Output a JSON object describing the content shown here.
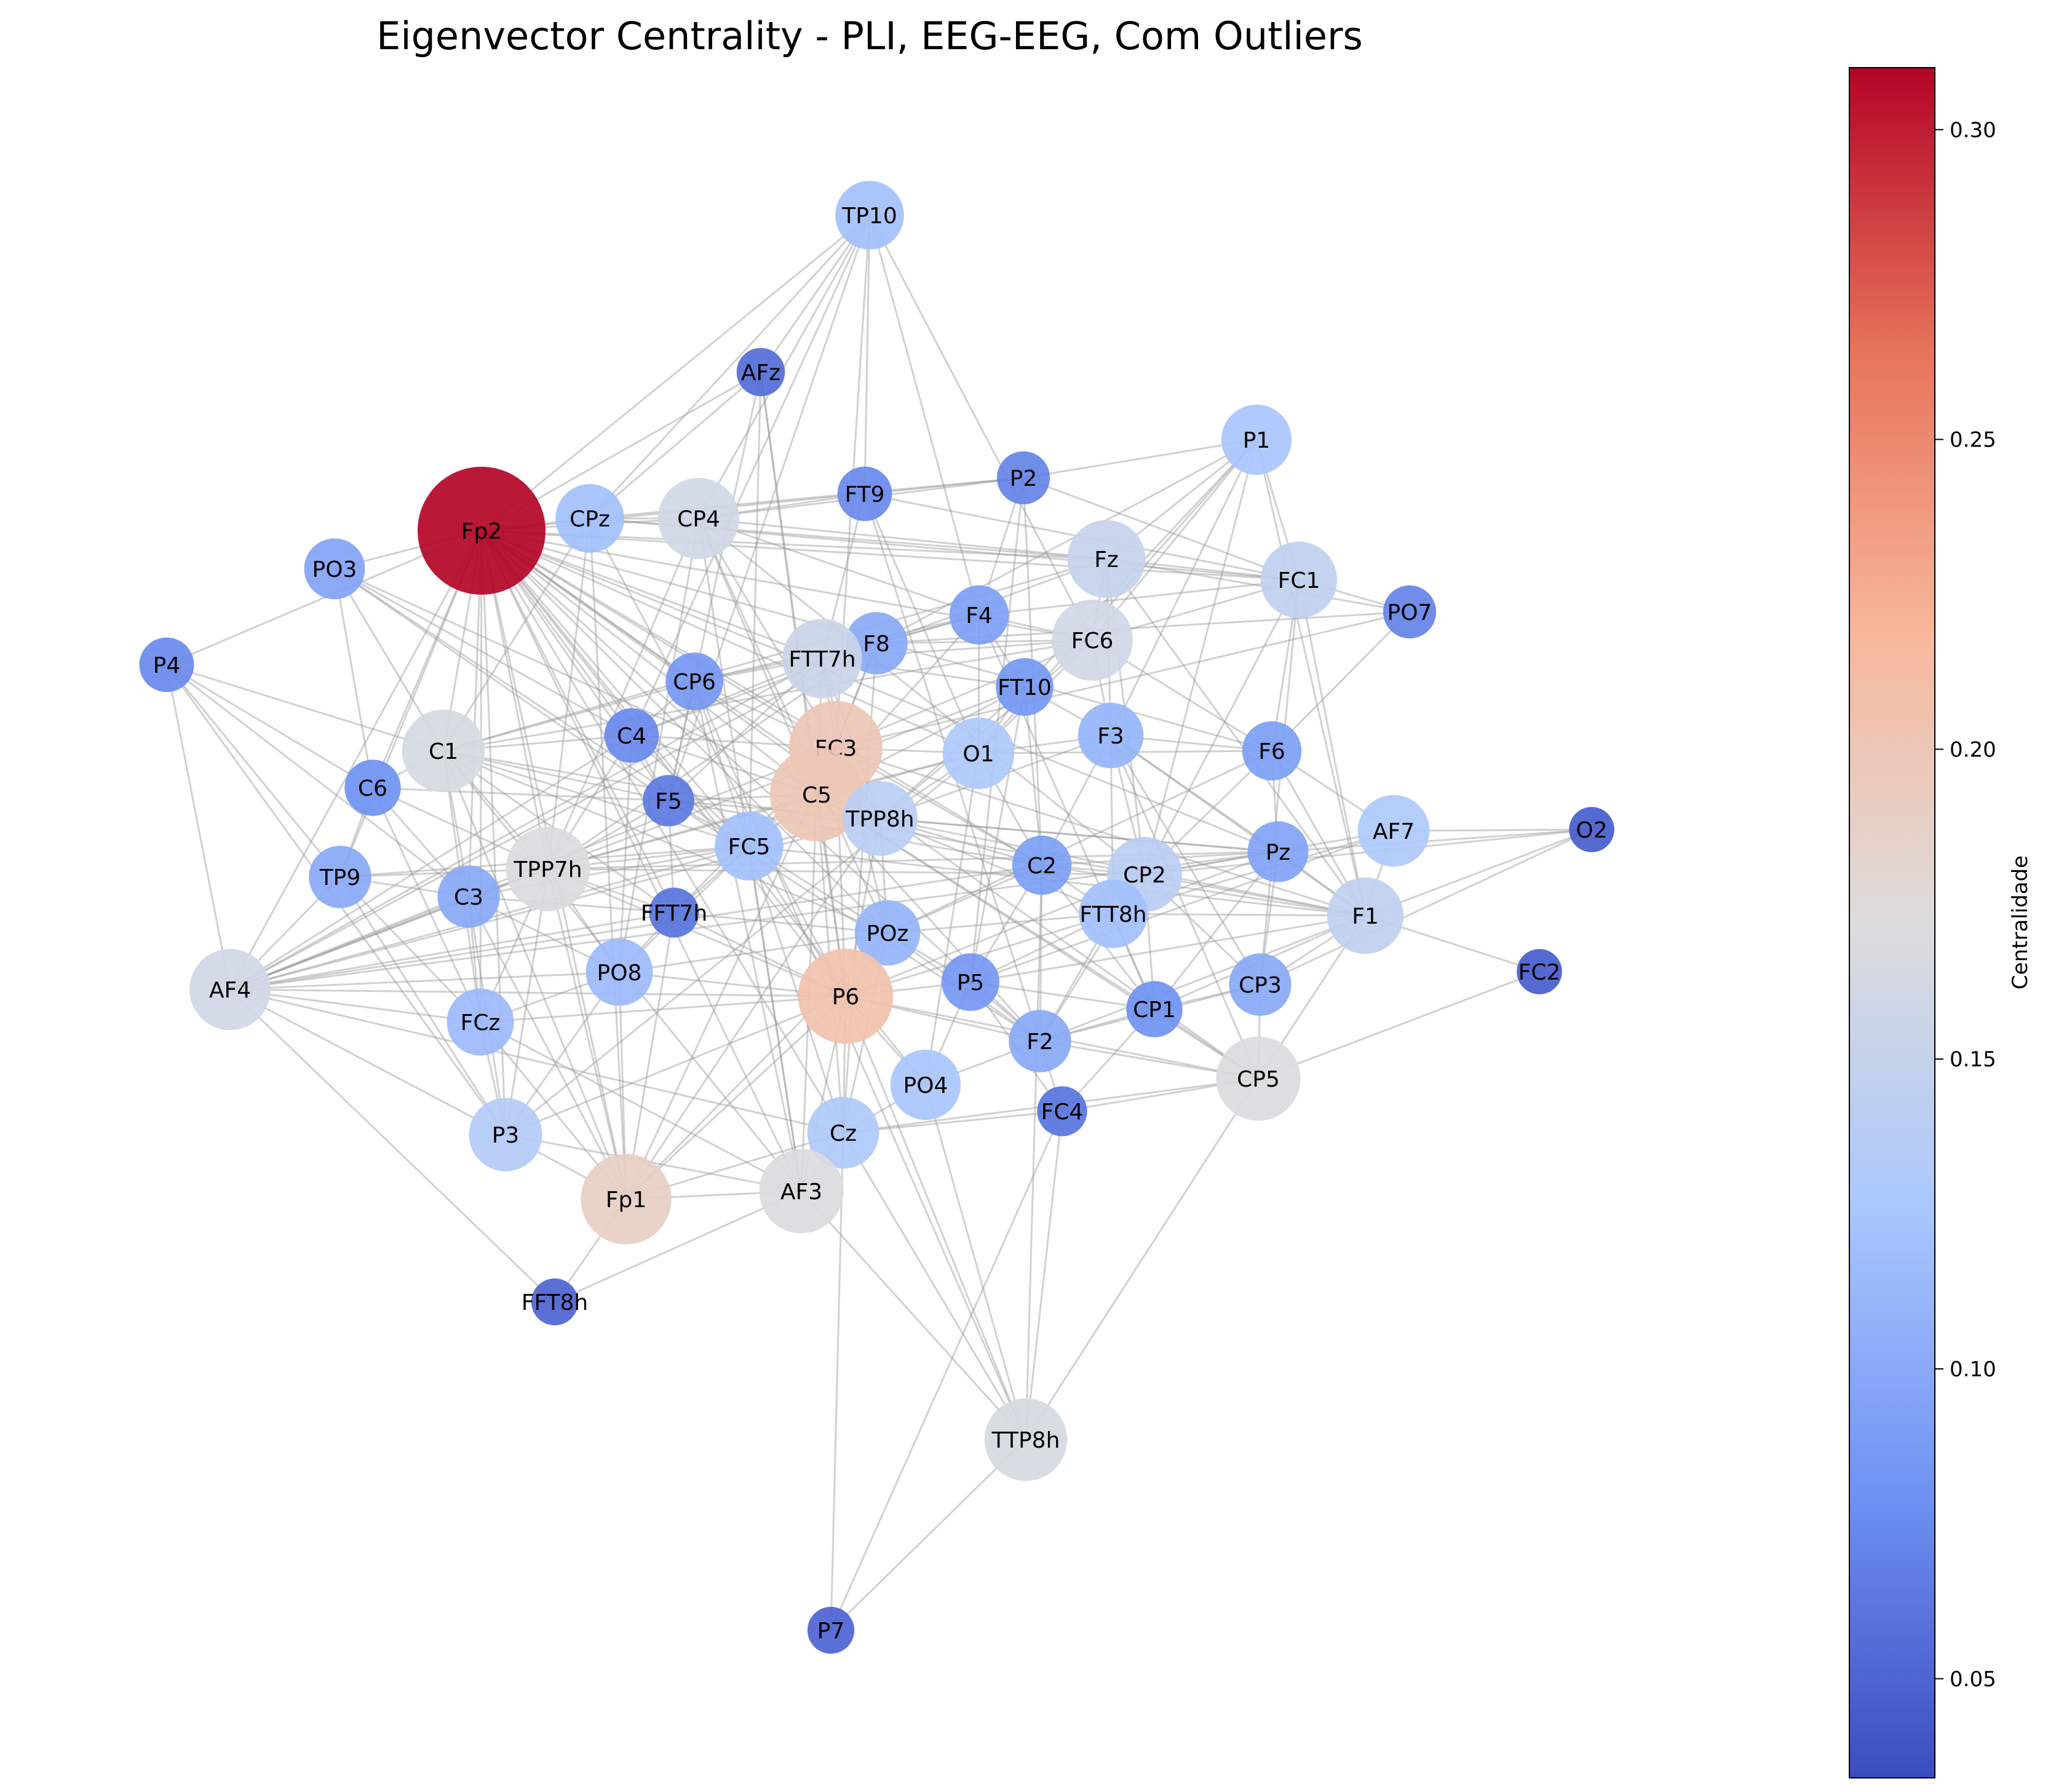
{
  "title": "Eigenvector Centrality - PLI, EEG-EEG, Com Outliers",
  "colorbar": {
    "label": "Centralidade",
    "min": 0.034,
    "max": 0.31,
    "ticks": [
      "0.05",
      "0.10",
      "0.15",
      "0.20",
      "0.25",
      "0.30"
    ],
    "tick_values": [
      0.05,
      0.1,
      0.15,
      0.2,
      0.25,
      0.3
    ],
    "colormap": "coolwarm",
    "colormap_stops": [
      "#3b4cc0",
      "#6f92f3",
      "#aac7fd",
      "#dddcdc",
      "#f7b89c",
      "#e7745b",
      "#b40426"
    ]
  },
  "nodes": [
    {
      "id": "TP10",
      "value": 0.12
    },
    {
      "id": "AFz",
      "value": 0.055
    },
    {
      "id": "P1",
      "value": 0.125
    },
    {
      "id": "P2",
      "value": 0.07
    },
    {
      "id": "FT9",
      "value": 0.075
    },
    {
      "id": "CPz",
      "value": 0.12
    },
    {
      "id": "CP4",
      "value": 0.16
    },
    {
      "id": "Fp2",
      "value": 0.31
    },
    {
      "id": "PO3",
      "value": 0.095
    },
    {
      "id": "Fz",
      "value": 0.15
    },
    {
      "id": "FC1",
      "value": 0.145
    },
    {
      "id": "PO7",
      "value": 0.07
    },
    {
      "id": "P4",
      "value": 0.075
    },
    {
      "id": "F4",
      "value": 0.09
    },
    {
      "id": "FC6",
      "value": 0.16
    },
    {
      "id": "F8",
      "value": 0.1
    },
    {
      "id": "FTT7h",
      "value": 0.155
    },
    {
      "id": "CP6",
      "value": 0.085
    },
    {
      "id": "FT10",
      "value": 0.085
    },
    {
      "id": "C1",
      "value": 0.165
    },
    {
      "id": "C4",
      "value": 0.075
    },
    {
      "id": "FC3",
      "value": 0.2
    },
    {
      "id": "O1",
      "value": 0.13
    },
    {
      "id": "F3",
      "value": 0.11
    },
    {
      "id": "F6",
      "value": 0.09
    },
    {
      "id": "C6",
      "value": 0.08
    },
    {
      "id": "F5",
      "value": 0.065
    },
    {
      "id": "C5",
      "value": 0.2
    },
    {
      "id": "TPP8h",
      "value": 0.14
    },
    {
      "id": "AF7",
      "value": 0.13
    },
    {
      "id": "O2",
      "value": 0.045
    },
    {
      "id": "TP9",
      "value": 0.1
    },
    {
      "id": "FC5",
      "value": 0.12
    },
    {
      "id": "TPP7h",
      "value": 0.17
    },
    {
      "id": "C2",
      "value": 0.09
    },
    {
      "id": "CP2",
      "value": 0.14
    },
    {
      "id": "Pz",
      "value": 0.095
    },
    {
      "id": "C3",
      "value": 0.1
    },
    {
      "id": "FFT7h",
      "value": 0.06
    },
    {
      "id": "FTT8h",
      "value": 0.12
    },
    {
      "id": "F1",
      "value": 0.145
    },
    {
      "id": "AF4",
      "value": 0.16
    },
    {
      "id": "POz",
      "value": 0.11
    },
    {
      "id": "PO8",
      "value": 0.115
    },
    {
      "id": "FC2",
      "value": 0.045
    },
    {
      "id": "P5",
      "value": 0.085
    },
    {
      "id": "CP1",
      "value": 0.08
    },
    {
      "id": "CP3",
      "value": 0.1
    },
    {
      "id": "P6",
      "value": 0.205
    },
    {
      "id": "FCz",
      "value": 0.115
    },
    {
      "id": "F2",
      "value": 0.1
    },
    {
      "id": "PO4",
      "value": 0.125
    },
    {
      "id": "CP5",
      "value": 0.17
    },
    {
      "id": "FC4",
      "value": 0.06
    },
    {
      "id": "P3",
      "value": 0.135
    },
    {
      "id": "Cz",
      "value": 0.13
    },
    {
      "id": "Fp1",
      "value": 0.19
    },
    {
      "id": "AF3",
      "value": 0.17
    },
    {
      "id": "FFT8h",
      "value": 0.05
    },
    {
      "id": "TTP8h",
      "value": 0.165
    },
    {
      "id": "P7",
      "value": 0.05
    }
  ],
  "edges": [
    [
      "TP10",
      "AFz"
    ],
    [
      "TP10",
      "CP4"
    ],
    [
      "TP10",
      "Fp2"
    ],
    [
      "TP10",
      "FT9"
    ],
    [
      "TP10",
      "F4"
    ],
    [
      "TP10",
      "FC6"
    ],
    [
      "TP10",
      "F5"
    ],
    [
      "TP10",
      "C4"
    ],
    [
      "TP10",
      "CPz"
    ],
    [
      "TP10",
      "FC3"
    ],
    [
      "AFz",
      "Fp2"
    ],
    [
      "AFz",
      "CPz"
    ],
    [
      "AFz",
      "F5"
    ],
    [
      "AFz",
      "C5"
    ],
    [
      "AFz",
      "FC5"
    ],
    [
      "AFz",
      "P6"
    ],
    [
      "P1",
      "P2"
    ],
    [
      "P1",
      "Fz"
    ],
    [
      "P1",
      "FC6"
    ],
    [
      "P1",
      "F8"
    ],
    [
      "P1",
      "FC1"
    ],
    [
      "P1",
      "F3"
    ],
    [
      "P1",
      "CP2"
    ],
    [
      "P1",
      "F1"
    ],
    [
      "P1",
      "O1"
    ],
    [
      "P1",
      "FT10"
    ],
    [
      "P2",
      "FT9"
    ],
    [
      "P2",
      "CPz"
    ],
    [
      "P2",
      "CP4"
    ],
    [
      "P2",
      "F4"
    ],
    [
      "P2",
      "FC1"
    ],
    [
      "P2",
      "C2"
    ],
    [
      "P2",
      "P5"
    ],
    [
      "FT9",
      "CP4"
    ],
    [
      "FT9",
      "FC1"
    ],
    [
      "FT9",
      "FTT7h"
    ],
    [
      "FT9",
      "F2"
    ],
    [
      "FT9",
      "Fp2"
    ],
    [
      "FT9",
      "O1"
    ],
    [
      "CPz",
      "Fp2"
    ],
    [
      "CPz",
      "CP4"
    ],
    [
      "CPz",
      "Fz"
    ],
    [
      "CPz",
      "C1"
    ],
    [
      "CPz",
      "TPP7h"
    ],
    [
      "CPz",
      "P6"
    ],
    [
      "CPz",
      "Fp1"
    ],
    [
      "CPz",
      "FC1"
    ],
    [
      "CP4",
      "Fp2"
    ],
    [
      "CP4",
      "F4"
    ],
    [
      "CP4",
      "FC3"
    ],
    [
      "CP4",
      "C5"
    ],
    [
      "CP4",
      "PO8"
    ],
    [
      "CP4",
      "POz"
    ],
    [
      "CP4",
      "CP2"
    ],
    [
      "CP4",
      "Fz"
    ],
    [
      "CP4",
      "AF3"
    ],
    [
      "CP4",
      "TPP7h"
    ],
    [
      "Fp2",
      "PO3"
    ],
    [
      "Fp2",
      "P4"
    ],
    [
      "Fp2",
      "C1"
    ],
    [
      "Fp2",
      "C6"
    ],
    [
      "Fp2",
      "C4"
    ],
    [
      "Fp2",
      "F5"
    ],
    [
      "Fp2",
      "FC5"
    ],
    [
      "Fp2",
      "TPP7h"
    ],
    [
      "Fp2",
      "C3"
    ],
    [
      "Fp2",
      "FFT7h"
    ],
    [
      "Fp2",
      "TP9"
    ],
    [
      "Fp2",
      "AF4"
    ],
    [
      "Fp2",
      "FCz"
    ],
    [
      "Fp2",
      "P3"
    ],
    [
      "Fp2",
      "Fp1"
    ],
    [
      "Fp2",
      "AF3"
    ],
    [
      "Fp2",
      "Cz"
    ],
    [
      "Fp2",
      "P6"
    ],
    [
      "Fp2",
      "C5"
    ],
    [
      "Fp2",
      "FC3"
    ],
    [
      "Fp2",
      "TPP8h"
    ],
    [
      "Fp2",
      "O1"
    ],
    [
      "Fp2",
      "Fz"
    ],
    [
      "Fp2",
      "FC1"
    ],
    [
      "Fp2",
      "FC6"
    ],
    [
      "Fp2",
      "F6"
    ],
    [
      "Fp2",
      "Pz"
    ],
    [
      "Fp2",
      "C2"
    ],
    [
      "Fp2",
      "CP5"
    ],
    [
      "Fp2",
      "PO4"
    ],
    [
      "Fp2",
      "F2"
    ],
    [
      "Fp2",
      "POz"
    ],
    [
      "Fp2",
      "CP6"
    ],
    [
      "Fp2",
      "FTT7h"
    ],
    [
      "PO3",
      "C6"
    ],
    [
      "PO3",
      "C1"
    ],
    [
      "PO3",
      "FC5"
    ],
    [
      "PO3",
      "C4"
    ],
    [
      "PO3",
      "TPP8h"
    ],
    [
      "PO3",
      "F5"
    ],
    [
      "P4",
      "C6"
    ],
    [
      "P4",
      "TP9"
    ],
    [
      "P4",
      "AF4"
    ],
    [
      "P4",
      "C3"
    ],
    [
      "P4",
      "FC5"
    ],
    [
      "P4",
      "P3"
    ],
    [
      "Fz",
      "FC1"
    ],
    [
      "Fz",
      "FC6"
    ],
    [
      "Fz",
      "F3"
    ],
    [
      "Fz",
      "CP2"
    ],
    [
      "Fz",
      "F1"
    ],
    [
      "Fz",
      "C4"
    ],
    [
      "Fz",
      "PO7"
    ],
    [
      "Fz",
      "C1"
    ],
    [
      "FC1",
      "PO7"
    ],
    [
      "FC1",
      "FC6"
    ],
    [
      "FC1",
      "F6"
    ],
    [
      "FC1",
      "F1"
    ],
    [
      "FC1",
      "CP2"
    ],
    [
      "FC1",
      "F4"
    ],
    [
      "FC1",
      "CP3"
    ],
    [
      "PO7",
      "F6"
    ],
    [
      "PO7",
      "F8"
    ],
    [
      "PO7",
      "FC3"
    ],
    [
      "F4",
      "FC6"
    ],
    [
      "F4",
      "F8"
    ],
    [
      "F4",
      "FTT7h"
    ],
    [
      "F4",
      "CP6"
    ],
    [
      "F4",
      "O1"
    ],
    [
      "F4",
      "C5"
    ],
    [
      "F4",
      "FT10"
    ],
    [
      "F4",
      "CP1"
    ],
    [
      "FC6",
      "F8"
    ],
    [
      "FC6",
      "FTT7h"
    ],
    [
      "FC6",
      "O1"
    ],
    [
      "FC6",
      "F3"
    ],
    [
      "FC6",
      "F6"
    ],
    [
      "FC6",
      "FC3"
    ],
    [
      "FC6",
      "C1"
    ],
    [
      "FC6",
      "TPP8h"
    ],
    [
      "F8",
      "FTT7h"
    ],
    [
      "F8",
      "CP6"
    ],
    [
      "F8",
      "FC3"
    ],
    [
      "F8",
      "C5"
    ],
    [
      "F8",
      "TPP7h"
    ],
    [
      "F8",
      "Cz"
    ],
    [
      "F8",
      "AF4"
    ],
    [
      "FTT7h",
      "CP6"
    ],
    [
      "FTT7h",
      "FT10"
    ],
    [
      "FTT7h",
      "C4"
    ],
    [
      "FTT7h",
      "FC3"
    ],
    [
      "FTT7h",
      "C5"
    ],
    [
      "FTT7h",
      "POz"
    ],
    [
      "FTT7h",
      "AF4"
    ],
    [
      "FTT7h",
      "F5"
    ],
    [
      "FTT7h",
      "TPP8h"
    ],
    [
      "CP6",
      "C4"
    ],
    [
      "CP6",
      "FC3"
    ],
    [
      "CP6",
      "C1"
    ],
    [
      "CP6",
      "F5"
    ],
    [
      "CP6",
      "FC5"
    ],
    [
      "CP6",
      "AF3"
    ],
    [
      "CP6",
      "TTP8h"
    ],
    [
      "FT10",
      "O1"
    ],
    [
      "FT10",
      "F3"
    ],
    [
      "FT10",
      "C5"
    ],
    [
      "FT10",
      "TPP8h"
    ],
    [
      "FT10",
      "C2"
    ],
    [
      "FT10",
      "P5"
    ],
    [
      "FT10",
      "AF4"
    ],
    [
      "C1",
      "C4"
    ],
    [
      "C1",
      "C6"
    ],
    [
      "C1",
      "F5"
    ],
    [
      "C1",
      "TPP7h"
    ],
    [
      "C1",
      "C3"
    ],
    [
      "C1",
      "FFT7h"
    ],
    [
      "C1",
      "FCz"
    ],
    [
      "C1",
      "AF3"
    ],
    [
      "C1",
      "Fp1"
    ],
    [
      "C1",
      "POz"
    ],
    [
      "C1",
      "CP2"
    ],
    [
      "C4",
      "F5"
    ],
    [
      "C4",
      "FC3"
    ],
    [
      "C4",
      "C5"
    ],
    [
      "C4",
      "FC5"
    ],
    [
      "C4",
      "TPP7h"
    ],
    [
      "C4",
      "AF4"
    ],
    [
      "C4",
      "PO8"
    ],
    [
      "FC3",
      "O1"
    ],
    [
      "FC3",
      "C5"
    ],
    [
      "FC3",
      "TPP8h"
    ],
    [
      "FC3",
      "FC5"
    ],
    [
      "FC3",
      "AF4"
    ],
    [
      "FC3",
      "FFT7h"
    ],
    [
      "FC3",
      "C2"
    ],
    [
      "FC3",
      "F1"
    ],
    [
      "FC3",
      "P6"
    ],
    [
      "FC3",
      "Fp1"
    ],
    [
      "O1",
      "F3"
    ],
    [
      "O1",
      "C5"
    ],
    [
      "O1",
      "TPP8h"
    ],
    [
      "O1",
      "C2"
    ],
    [
      "O1",
      "F6"
    ],
    [
      "O1",
      "PO4"
    ],
    [
      "O1",
      "TPP7h"
    ],
    [
      "O1",
      "P3"
    ],
    [
      "F3",
      "F6"
    ],
    [
      "F3",
      "C2"
    ],
    [
      "F3",
      "CP2"
    ],
    [
      "F3",
      "Pz"
    ],
    [
      "F3",
      "F1"
    ],
    [
      "F3",
      "CP3"
    ],
    [
      "F3",
      "FTT8h"
    ],
    [
      "F3",
      "CP5"
    ],
    [
      "F3",
      "TPP8h"
    ],
    [
      "F6",
      "Pz"
    ],
    [
      "F6",
      "AF7"
    ],
    [
      "F6",
      "CP2"
    ],
    [
      "F6",
      "F1"
    ],
    [
      "F6",
      "POz"
    ],
    [
      "C6",
      "TP9"
    ],
    [
      "C6",
      "C3"
    ],
    [
      "C6",
      "FCz"
    ],
    [
      "C6",
      "F5"
    ],
    [
      "C6",
      "TPP7h"
    ],
    [
      "F5",
      "C5"
    ],
    [
      "F5",
      "FC5"
    ],
    [
      "F5",
      "TPP7h"
    ],
    [
      "F5",
      "FFT7h"
    ],
    [
      "F5",
      "F2"
    ],
    [
      "F5",
      "Pz"
    ],
    [
      "F5",
      "C2"
    ],
    [
      "C5",
      "TPP8h"
    ],
    [
      "C5",
      "FC5"
    ],
    [
      "C5",
      "P6"
    ],
    [
      "C5",
      "CP1"
    ],
    [
      "C5",
      "CP5"
    ],
    [
      "C5",
      "F2"
    ],
    [
      "C5",
      "TPP7h"
    ],
    [
      "C5",
      "AF3"
    ],
    [
      "C5",
      "Cz"
    ],
    [
      "TPP8h",
      "FC5"
    ],
    [
      "TPP8h",
      "C2"
    ],
    [
      "TPP8h",
      "Pz"
    ],
    [
      "TPP8h",
      "FTT8h"
    ],
    [
      "TPP8h",
      "POz"
    ],
    [
      "TPP8h",
      "P6"
    ],
    [
      "TPP8h",
      "Fp1"
    ],
    [
      "TPP8h",
      "AF4"
    ],
    [
      "TPP8h",
      "F1"
    ],
    [
      "AF7",
      "O2"
    ],
    [
      "AF7",
      "F1"
    ],
    [
      "AF7",
      "CP2"
    ],
    [
      "AF7",
      "FTT8h"
    ],
    [
      "AF7",
      "P5"
    ],
    [
      "O2",
      "F1"
    ],
    [
      "O2",
      "CP2"
    ],
    [
      "O2",
      "CP3"
    ],
    [
      "O2",
      "Pz"
    ],
    [
      "TP9",
      "C3"
    ],
    [
      "TP9",
      "AF4"
    ],
    [
      "TP9",
      "TPP7h"
    ],
    [
      "TP9",
      "FCz"
    ],
    [
      "TP9",
      "P3"
    ],
    [
      "TP9",
      "FC5"
    ],
    [
      "FC5",
      "TPP7h"
    ],
    [
      "FC5",
      "C3"
    ],
    [
      "FC5",
      "FFT7h"
    ],
    [
      "FC5",
      "POz"
    ],
    [
      "FC5",
      "PO8"
    ],
    [
      "FC5",
      "P6"
    ],
    [
      "FC5",
      "AF3"
    ],
    [
      "FC5",
      "Cz"
    ],
    [
      "FC5",
      "AF4"
    ],
    [
      "FC5",
      "F1"
    ],
    [
      "TPP7h",
      "C3"
    ],
    [
      "TPP7h",
      "AF4"
    ],
    [
      "TPP7h",
      "FFT7h"
    ],
    [
      "TPP7h",
      "PO8"
    ],
    [
      "TPP7h",
      "FCz"
    ],
    [
      "TPP7h",
      "P3"
    ],
    [
      "TPP7h",
      "P6"
    ],
    [
      "TPP7h",
      "Fp1"
    ],
    [
      "TPP7h",
      "Pz"
    ],
    [
      "TPP7h",
      "CP2"
    ],
    [
      "C2",
      "CP2"
    ],
    [
      "C2",
      "Pz"
    ],
    [
      "C2",
      "FTT8h"
    ],
    [
      "C2",
      "F1"
    ],
    [
      "C2",
      "P5"
    ],
    [
      "C2",
      "F2"
    ],
    [
      "C2",
      "POz"
    ],
    [
      "C2",
      "CP1"
    ],
    [
      "C2",
      "AF4"
    ],
    [
      "C2",
      "TTP8h"
    ],
    [
      "CP2",
      "Pz"
    ],
    [
      "CP2",
      "F1"
    ],
    [
      "CP2",
      "FTT8h"
    ],
    [
      "CP2",
      "CP1"
    ],
    [
      "CP2",
      "CP3"
    ],
    [
      "CP2",
      "F2"
    ],
    [
      "CP2",
      "P6"
    ],
    [
      "Pz",
      "F1"
    ],
    [
      "Pz",
      "CP3"
    ],
    [
      "Pz",
      "FTT8h"
    ],
    [
      "Pz",
      "CP1"
    ],
    [
      "Pz",
      "AF4"
    ],
    [
      "C3",
      "AF4"
    ],
    [
      "C3",
      "FFT7h"
    ],
    [
      "C3",
      "FCz"
    ],
    [
      "C3",
      "P3"
    ],
    [
      "C3",
      "PO8"
    ],
    [
      "C3",
      "Fp1"
    ],
    [
      "FFT7h",
      "PO8"
    ],
    [
      "FFT7h",
      "POz"
    ],
    [
      "FFT7h",
      "AF4"
    ],
    [
      "FFT7h",
      "P6"
    ],
    [
      "FFT7h",
      "Fp1"
    ],
    [
      "FTT8h",
      "F1"
    ],
    [
      "FTT8h",
      "P5"
    ],
    [
      "FTT8h",
      "CP1"
    ],
    [
      "FTT8h",
      "F2"
    ],
    [
      "FTT8h",
      "P6"
    ],
    [
      "FTT8h",
      "POz"
    ],
    [
      "F1",
      "FC2"
    ],
    [
      "F1",
      "CP3"
    ],
    [
      "F1",
      "CP1"
    ],
    [
      "F1",
      "CP5"
    ],
    [
      "F1",
      "F2"
    ],
    [
      "F1",
      "P5"
    ],
    [
      "AF4",
      "FCz"
    ],
    [
      "AF4",
      "P3"
    ],
    [
      "AF4",
      "FFT8h"
    ],
    [
      "AF4",
      "P6"
    ],
    [
      "AF4",
      "Cz"
    ],
    [
      "AF4",
      "PO8"
    ],
    [
      "POz",
      "PO8"
    ],
    [
      "POz",
      "P5"
    ],
    [
      "POz",
      "P6"
    ],
    [
      "POz",
      "Cz"
    ],
    [
      "POz",
      "Fp1"
    ],
    [
      "POz",
      "F2"
    ],
    [
      "PO8",
      "FCz"
    ],
    [
      "PO8",
      "P3"
    ],
    [
      "PO8",
      "Fp1"
    ],
    [
      "PO8",
      "P6"
    ],
    [
      "FC2",
      "CP5"
    ],
    [
      "P5",
      "F2"
    ],
    [
      "P5",
      "P6"
    ],
    [
      "P5",
      "CP1"
    ],
    [
      "P5",
      "FC4"
    ],
    [
      "P5",
      "PO4"
    ],
    [
      "CP1",
      "CP3"
    ],
    [
      "CP1",
      "F2"
    ],
    [
      "CP1",
      "FC4"
    ],
    [
      "CP1",
      "CP5"
    ],
    [
      "CP3",
      "CP5"
    ],
    [
      "CP3",
      "F2"
    ],
    [
      "P6",
      "PO4"
    ],
    [
      "P6",
      "F2"
    ],
    [
      "P6",
      "Cz"
    ],
    [
      "P6",
      "AF3"
    ],
    [
      "P6",
      "Fp1"
    ],
    [
      "P6",
      "FCz"
    ],
    [
      "P6",
      "P3"
    ],
    [
      "P6",
      "CP5"
    ],
    [
      "P6",
      "TTP8h"
    ],
    [
      "FCz",
      "P3"
    ],
    [
      "FCz",
      "Fp1"
    ],
    [
      "FCz",
      "AF3"
    ],
    [
      "F2",
      "PO4"
    ],
    [
      "F2",
      "FC4"
    ],
    [
      "F2",
      "CP5"
    ],
    [
      "PO4",
      "Cz"
    ],
    [
      "PO4",
      "TTP8h"
    ],
    [
      "CP5",
      "FC4"
    ],
    [
      "CP5",
      "TTP8h"
    ],
    [
      "CP5",
      "Cz"
    ],
    [
      "FC4",
      "TTP8h"
    ],
    [
      "FC4",
      "Cz"
    ],
    [
      "FC4",
      "P7"
    ],
    [
      "P3",
      "Fp1"
    ],
    [
      "P3",
      "AF3"
    ],
    [
      "Cz",
      "Fp1"
    ],
    [
      "Cz",
      "AF3"
    ],
    [
      "Cz",
      "P7"
    ],
    [
      "Cz",
      "TTP8h"
    ],
    [
      "Fp1",
      "AF3"
    ],
    [
      "Fp1",
      "FFT8h"
    ],
    [
      "AF3",
      "FFT8h"
    ],
    [
      "AF3",
      "TTP8h"
    ],
    [
      "TTP8h",
      "P7"
    ]
  ]
}
